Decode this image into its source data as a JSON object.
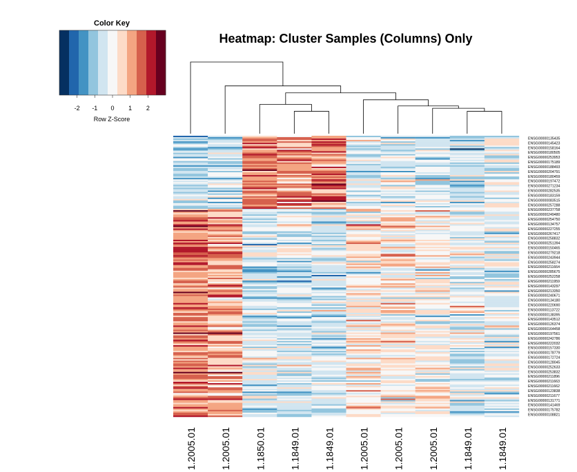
{
  "chart_data": {
    "type": "heatmap",
    "title": "Heatmap: Cluster Samples (Columns) Only",
    "color_key": {
      "title": "Color Key",
      "xlabel": "Row Z-Score",
      "ticks": [
        -2,
        -1,
        0,
        1,
        2
      ],
      "range": [
        -3,
        3
      ],
      "colors": [
        "#053061",
        "#2166ac",
        "#4393c3",
        "#92c5de",
        "#d1e5f0",
        "#f7f7f7",
        "#fddbc7",
        "#f4a582",
        "#d6604d",
        "#b2182b",
        "#67001f"
      ]
    },
    "columns": [
      "1.2005.01",
      "1.2005.01",
      "1.1850.01",
      "1.1849.01",
      "1.1849.01",
      "1.2005.01",
      "1.2005.01",
      "1.2005.01",
      "1.1849.01",
      "1.1849.01"
    ],
    "row_labels": [
      "ENSG00000135435",
      "ENSG00000145423",
      "ENSG00000158164",
      "ENSG00000180505",
      "ENSG00000253953",
      "ENSG00000175189",
      "ENSG00000188493",
      "ENSG00000204791",
      "ENSG00000180459",
      "ENSG00000197472",
      "ENSG00000271234",
      "ENSG00000282535",
      "ENSG00000183159",
      "ENSG00000083515",
      "ENSG00000257288",
      "ENSG00000237758",
      "ENSG00000249480",
      "ENSG00000254750",
      "ENSG00000134757",
      "ENSG00000227255",
      "ENSG00000267417",
      "ENSG00000258832",
      "ENSG00000251394",
      "ENSG00000150465",
      "ENSG00000279218",
      "ENSG00000243944",
      "ENSG00000258274",
      "ENSG00000211664",
      "ENSG00000285675",
      "ENSG00000252258",
      "ENSG00000211959",
      "ENSG00000143297",
      "ENSG00000213350",
      "ENSG00000240671",
      "ENSG00000134180",
      "ENSG00000220690",
      "ENSG00000113722",
      "ENSG00000138395",
      "ENSG00000143512",
      "ENSG00000126374",
      "ENSG00000164458",
      "ENSG00000197561",
      "ENSG00000242786",
      "ENSG00000222032",
      "ENSG00000157330",
      "ENSG00000178779",
      "ENSG00000172724",
      "ENSG00000128045",
      "ENSG00000252633",
      "ENSG00000253832",
      "ENSG00000211896",
      "ENSG00000211663",
      "ENSG00000211662",
      "ENSG00000123838",
      "ENSG00000211677",
      "ENSG00000131771",
      "ENSG00000141469",
      "ENSG00000175782",
      "ENSG00000108821"
    ],
    "n_gene_rows": 200,
    "column_profiles": {
      "top_block_rows": 0.26,
      "top_block_means": [
        -0.8,
        -0.6,
        1.4,
        1.3,
        1.4,
        -0.3,
        -0.2,
        -0.4,
        -0.6,
        -0.2
      ],
      "bottom_block_means": [
        1.3,
        1.0,
        -0.4,
        -0.5,
        -0.5,
        0.2,
        0.3,
        0.1,
        -0.3,
        -0.3
      ]
    },
    "dendrogram": {
      "merges": [
        [
          3,
          4,
          0.29
        ],
        [
          8,
          9,
          0.29
        ],
        [
          7,
          8,
          0.33
        ],
        [
          2,
          3,
          0.38
        ],
        [
          6,
          7,
          0.36
        ],
        [
          5,
          6,
          0.44
        ],
        [
          2,
          5,
          0.53
        ],
        [
          1,
          2,
          0.62
        ],
        [
          0,
          1,
          0.93
        ]
      ]
    }
  }
}
